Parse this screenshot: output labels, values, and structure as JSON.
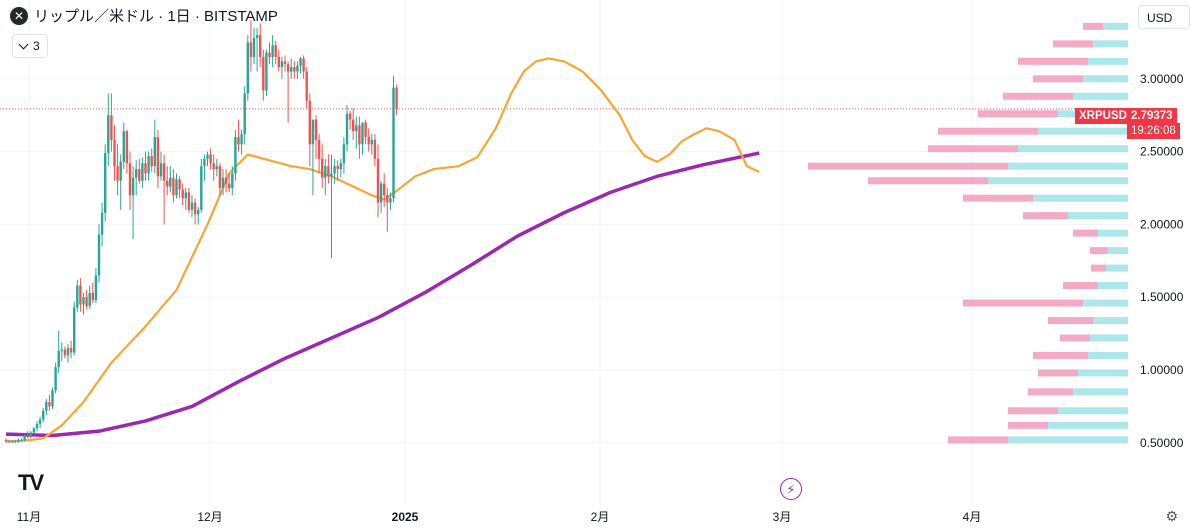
{
  "header": {
    "title": "リップル／米ドル · 1日 · BITSTAMP",
    "indicator_count": "3",
    "currency": "USD"
  },
  "price_tag": {
    "symbol": "XRPUSD",
    "price": "2.79373",
    "countdown": "19:26:08"
  },
  "colors": {
    "up": "#26a69a",
    "down": "#ef5350",
    "ma_fast": "#f7a634",
    "ma_slow": "#9c27b0",
    "vp_up": "#9ee3e8",
    "vp_down": "#f29bbb",
    "grid": "#f0f3fa"
  },
  "chart_data": {
    "type": "candlestick",
    "title": "リップル／米ドル · 1日 · BITSTAMP",
    "y_ticks": [
      "3.00000",
      "2.50000",
      "2.00000",
      "1.50000",
      "1.00000",
      "0.50000"
    ],
    "ylim": [
      0.46,
      3.4
    ],
    "x_labels": [
      "11月",
      "12月",
      "2025",
      "2月",
      "3月",
      "4月"
    ],
    "current_price": 2.79373,
    "grid": true,
    "candles_ohlc": [
      [
        0.52,
        0.53,
        0.5,
        0.51
      ],
      [
        0.51,
        0.52,
        0.5,
        0.51
      ],
      [
        0.51,
        0.52,
        0.5,
        0.51
      ],
      [
        0.51,
        0.52,
        0.5,
        0.51
      ],
      [
        0.51,
        0.53,
        0.5,
        0.52
      ],
      [
        0.52,
        0.53,
        0.51,
        0.52
      ],
      [
        0.52,
        0.56,
        0.51,
        0.55
      ],
      [
        0.55,
        0.58,
        0.53,
        0.54
      ],
      [
        0.54,
        0.58,
        0.53,
        0.57
      ],
      [
        0.57,
        0.61,
        0.56,
        0.6
      ],
      [
        0.6,
        0.65,
        0.58,
        0.63
      ],
      [
        0.63,
        0.68,
        0.6,
        0.66
      ],
      [
        0.66,
        0.74,
        0.64,
        0.72
      ],
      [
        0.72,
        0.8,
        0.69,
        0.78
      ],
      [
        0.78,
        0.83,
        0.72,
        0.75
      ],
      [
        0.75,
        0.88,
        0.73,
        0.86
      ],
      [
        0.86,
        1.05,
        0.84,
        1.02
      ],
      [
        1.02,
        1.27,
        0.98,
        1.13
      ],
      [
        1.13,
        1.19,
        1.06,
        1.14
      ],
      [
        1.14,
        1.16,
        1.08,
        1.1
      ],
      [
        1.1,
        1.18,
        1.05,
        1.15
      ],
      [
        1.15,
        1.2,
        1.08,
        1.12
      ],
      [
        1.12,
        1.47,
        1.1,
        1.43
      ],
      [
        1.43,
        1.62,
        1.4,
        1.58
      ],
      [
        1.58,
        1.63,
        1.4,
        1.45
      ],
      [
        1.45,
        1.53,
        1.38,
        1.5
      ],
      [
        1.5,
        1.55,
        1.42,
        1.44
      ],
      [
        1.44,
        1.58,
        1.42,
        1.53
      ],
      [
        1.53,
        1.6,
        1.46,
        1.48
      ],
      [
        1.48,
        1.7,
        1.46,
        1.65
      ],
      [
        1.65,
        2.0,
        1.6,
        1.93
      ],
      [
        1.93,
        2.15,
        1.85,
        2.08
      ],
      [
        2.08,
        2.55,
        2.02,
        2.49
      ],
      [
        2.49,
        2.9,
        2.4,
        2.75
      ],
      [
        2.75,
        2.9,
        2.5,
        2.58
      ],
      [
        2.58,
        2.68,
        2.3,
        2.4
      ],
      [
        2.4,
        2.55,
        2.2,
        2.3
      ],
      [
        2.3,
        2.48,
        2.1,
        2.43
      ],
      [
        2.43,
        2.7,
        2.38,
        2.64
      ],
      [
        2.64,
        2.65,
        2.35,
        2.42
      ],
      [
        2.42,
        2.5,
        2.1,
        2.2
      ],
      [
        2.2,
        2.4,
        1.9,
        2.32
      ],
      [
        2.32,
        2.44,
        2.2,
        2.38
      ],
      [
        2.38,
        2.45,
        2.28,
        2.3
      ],
      [
        2.3,
        2.46,
        2.25,
        2.42
      ],
      [
        2.42,
        2.5,
        2.3,
        2.35
      ],
      [
        2.35,
        2.5,
        2.3,
        2.47
      ],
      [
        2.47,
        2.52,
        2.36,
        2.4
      ],
      [
        2.4,
        2.72,
        2.35,
        2.6
      ],
      [
        2.6,
        2.65,
        2.25,
        2.33
      ],
      [
        2.33,
        2.5,
        2.3,
        2.42
      ],
      [
        2.42,
        2.48,
        2.0,
        2.3
      ],
      [
        2.3,
        2.4,
        2.2,
        2.26
      ],
      [
        2.26,
        2.4,
        2.22,
        2.32
      ],
      [
        2.32,
        2.38,
        2.15,
        2.2
      ],
      [
        2.2,
        2.35,
        2.18,
        2.31
      ],
      [
        2.31,
        2.33,
        2.18,
        2.24
      ],
      [
        2.24,
        2.28,
        2.13,
        2.18
      ],
      [
        2.18,
        2.25,
        2.1,
        2.22
      ],
      [
        2.22,
        2.25,
        2.08,
        2.1
      ],
      [
        2.1,
        2.2,
        2.05,
        2.15
      ],
      [
        2.15,
        2.18,
        2.0,
        2.07
      ],
      [
        2.07,
        2.12,
        2.0,
        2.1
      ],
      [
        2.1,
        2.45,
        2.08,
        2.4
      ],
      [
        2.4,
        2.48,
        2.3,
        2.45
      ],
      [
        2.45,
        2.5,
        2.4,
        2.48
      ],
      [
        2.48,
        2.52,
        2.38,
        2.42
      ],
      [
        2.42,
        2.48,
        2.3,
        2.38
      ],
      [
        2.38,
        2.45,
        2.33,
        2.4
      ],
      [
        2.4,
        2.42,
        2.2,
        2.25
      ],
      [
        2.25,
        2.38,
        2.2,
        2.32
      ],
      [
        2.32,
        2.38,
        2.22,
        2.28
      ],
      [
        2.28,
        2.35,
        2.22,
        2.25
      ],
      [
        2.25,
        2.4,
        2.2,
        2.35
      ],
      [
        2.35,
        2.65,
        2.3,
        2.6
      ],
      [
        2.6,
        2.72,
        2.5,
        2.55
      ],
      [
        2.55,
        2.65,
        2.48,
        2.62
      ],
      [
        2.62,
        2.95,
        2.55,
        2.9
      ],
      [
        2.9,
        3.3,
        2.85,
        3.25
      ],
      [
        3.25,
        3.4,
        3.05,
        3.15
      ],
      [
        3.15,
        3.35,
        3.1,
        3.28
      ],
      [
        3.28,
        3.35,
        3.05,
        3.3
      ],
      [
        3.3,
        3.38,
        3.08,
        3.15
      ],
      [
        3.15,
        3.2,
        2.85,
        2.92
      ],
      [
        2.92,
        3.2,
        2.88,
        3.18
      ],
      [
        3.18,
        3.25,
        3.1,
        3.15
      ],
      [
        3.15,
        3.3,
        3.08,
        3.23
      ],
      [
        3.23,
        3.26,
        3.1,
        3.15
      ],
      [
        3.15,
        3.2,
        3.05,
        3.08
      ],
      [
        3.08,
        3.15,
        3.0,
        3.12
      ],
      [
        3.12,
        3.16,
        3.05,
        3.1
      ],
      [
        3.1,
        3.12,
        2.7,
        3.05
      ],
      [
        3.05,
        3.14,
        3.0,
        3.08
      ],
      [
        3.08,
        3.12,
        3.0,
        3.05
      ],
      [
        3.05,
        3.12,
        3.0,
        3.09
      ],
      [
        3.09,
        3.15,
        3.04,
        3.14
      ],
      [
        3.14,
        3.16,
        3.0,
        3.05
      ],
      [
        3.05,
        3.08,
        2.8,
        2.85
      ],
      [
        2.85,
        2.9,
        2.4,
        2.55
      ],
      [
        2.55,
        2.7,
        2.2,
        2.72
      ],
      [
        2.72,
        2.75,
        2.45,
        2.58
      ],
      [
        2.58,
        2.62,
        2.35,
        2.45
      ],
      [
        2.45,
        2.55,
        2.25,
        2.32
      ],
      [
        2.32,
        2.45,
        2.2,
        2.4
      ],
      [
        2.4,
        2.48,
        2.28,
        2.33
      ],
      [
        2.33,
        2.48,
        1.77,
        2.35
      ],
      [
        2.35,
        2.45,
        2.28,
        2.4
      ],
      [
        2.4,
        2.44,
        2.3,
        2.38
      ],
      [
        2.38,
        2.45,
        2.32,
        2.42
      ],
      [
        2.42,
        2.6,
        2.35,
        2.55
      ],
      [
        2.55,
        2.82,
        2.5,
        2.76
      ],
      [
        2.76,
        2.78,
        2.65,
        2.72
      ],
      [
        2.72,
        2.8,
        2.58,
        2.64
      ],
      [
        2.64,
        2.74,
        2.52,
        2.68
      ],
      [
        2.68,
        2.74,
        2.45,
        2.55
      ],
      [
        2.55,
        2.7,
        2.48,
        2.7
      ],
      [
        2.7,
        2.72,
        2.55,
        2.6
      ],
      [
        2.6,
        2.66,
        2.5,
        2.55
      ],
      [
        2.55,
        2.62,
        2.48,
        2.58
      ],
      [
        2.58,
        2.62,
        2.4,
        2.45
      ],
      [
        2.45,
        2.55,
        2.05,
        2.15
      ],
      [
        2.15,
        2.3,
        2.08,
        2.28
      ],
      [
        2.28,
        2.35,
        2.12,
        2.2
      ],
      [
        2.2,
        2.25,
        1.95,
        2.15
      ],
      [
        2.15,
        2.22,
        2.1,
        2.18
      ],
      [
        2.18,
        3.02,
        2.15,
        2.94
      ],
      [
        2.94,
        2.96,
        2.75,
        2.79
      ]
    ],
    "ma_fast_series": [
      [
        0,
        0.51
      ],
      [
        6,
        0.515
      ],
      [
        12,
        0.53
      ],
      [
        18,
        0.62
      ],
      [
        25,
        0.78
      ],
      [
        34,
        1.05
      ],
      [
        45,
        1.3
      ],
      [
        55,
        1.55
      ],
      [
        65,
        2.0
      ],
      [
        72,
        2.35
      ],
      [
        78,
        2.48
      ],
      [
        85,
        2.44
      ],
      [
        92,
        2.4
      ],
      [
        98,
        2.38
      ],
      [
        105,
        2.33
      ],
      [
        112,
        2.26
      ],
      [
        118,
        2.2
      ],
      [
        122,
        2.17
      ],
      [
        126,
        2.23
      ],
      [
        132,
        2.33
      ],
      [
        138,
        2.38
      ],
      [
        146,
        2.4
      ],
      [
        152,
        2.46
      ],
      [
        158,
        2.66
      ],
      [
        163,
        2.9
      ],
      [
        167,
        3.05
      ],
      [
        171,
        3.12
      ],
      [
        175,
        3.14
      ],
      [
        180,
        3.12
      ],
      [
        186,
        3.05
      ],
      [
        192,
        2.92
      ],
      [
        198,
        2.75
      ],
      [
        202,
        2.58
      ],
      [
        206,
        2.47
      ],
      [
        210,
        2.43
      ],
      [
        214,
        2.48
      ],
      [
        218,
        2.57
      ],
      [
        222,
        2.62
      ],
      [
        226,
        2.66
      ],
      [
        230,
        2.64
      ],
      [
        235,
        2.58
      ],
      [
        239,
        2.4
      ],
      [
        243,
        2.36
      ]
    ],
    "ma_slow_series": [
      [
        0,
        0.56
      ],
      [
        15,
        0.55
      ],
      [
        30,
        0.58
      ],
      [
        45,
        0.65
      ],
      [
        60,
        0.75
      ],
      [
        75,
        0.92
      ],
      [
        90,
        1.08
      ],
      [
        105,
        1.22
      ],
      [
        120,
        1.36
      ],
      [
        135,
        1.53
      ],
      [
        150,
        1.72
      ],
      [
        165,
        1.92
      ],
      [
        180,
        2.08
      ],
      [
        195,
        2.22
      ],
      [
        210,
        2.33
      ],
      [
        225,
        2.41
      ],
      [
        243,
        2.49
      ]
    ],
    "volume_profile": [
      [
        0.52,
        120,
        60
      ],
      [
        0.62,
        80,
        40
      ],
      [
        0.72,
        70,
        50
      ],
      [
        0.85,
        55,
        45
      ],
      [
        0.98,
        50,
        40
      ],
      [
        1.1,
        40,
        55
      ],
      [
        1.22,
        38,
        30
      ],
      [
        1.34,
        35,
        45
      ],
      [
        1.46,
        45,
        120
      ],
      [
        1.58,
        30,
        35
      ],
      [
        1.7,
        22,
        15
      ],
      [
        1.82,
        20,
        18
      ],
      [
        1.94,
        30,
        25
      ],
      [
        2.06,
        60,
        45
      ],
      [
        2.18,
        95,
        70
      ],
      [
        2.3,
        140,
        120
      ],
      [
        2.4,
        120,
        200
      ],
      [
        2.52,
        110,
        90
      ],
      [
        2.64,
        90,
        100
      ],
      [
        2.76,
        70,
        80
      ],
      [
        2.88,
        55,
        70
      ],
      [
        3.0,
        45,
        50
      ],
      [
        3.12,
        40,
        70
      ],
      [
        3.24,
        35,
        40
      ],
      [
        3.36,
        25,
        20
      ]
    ]
  }
}
